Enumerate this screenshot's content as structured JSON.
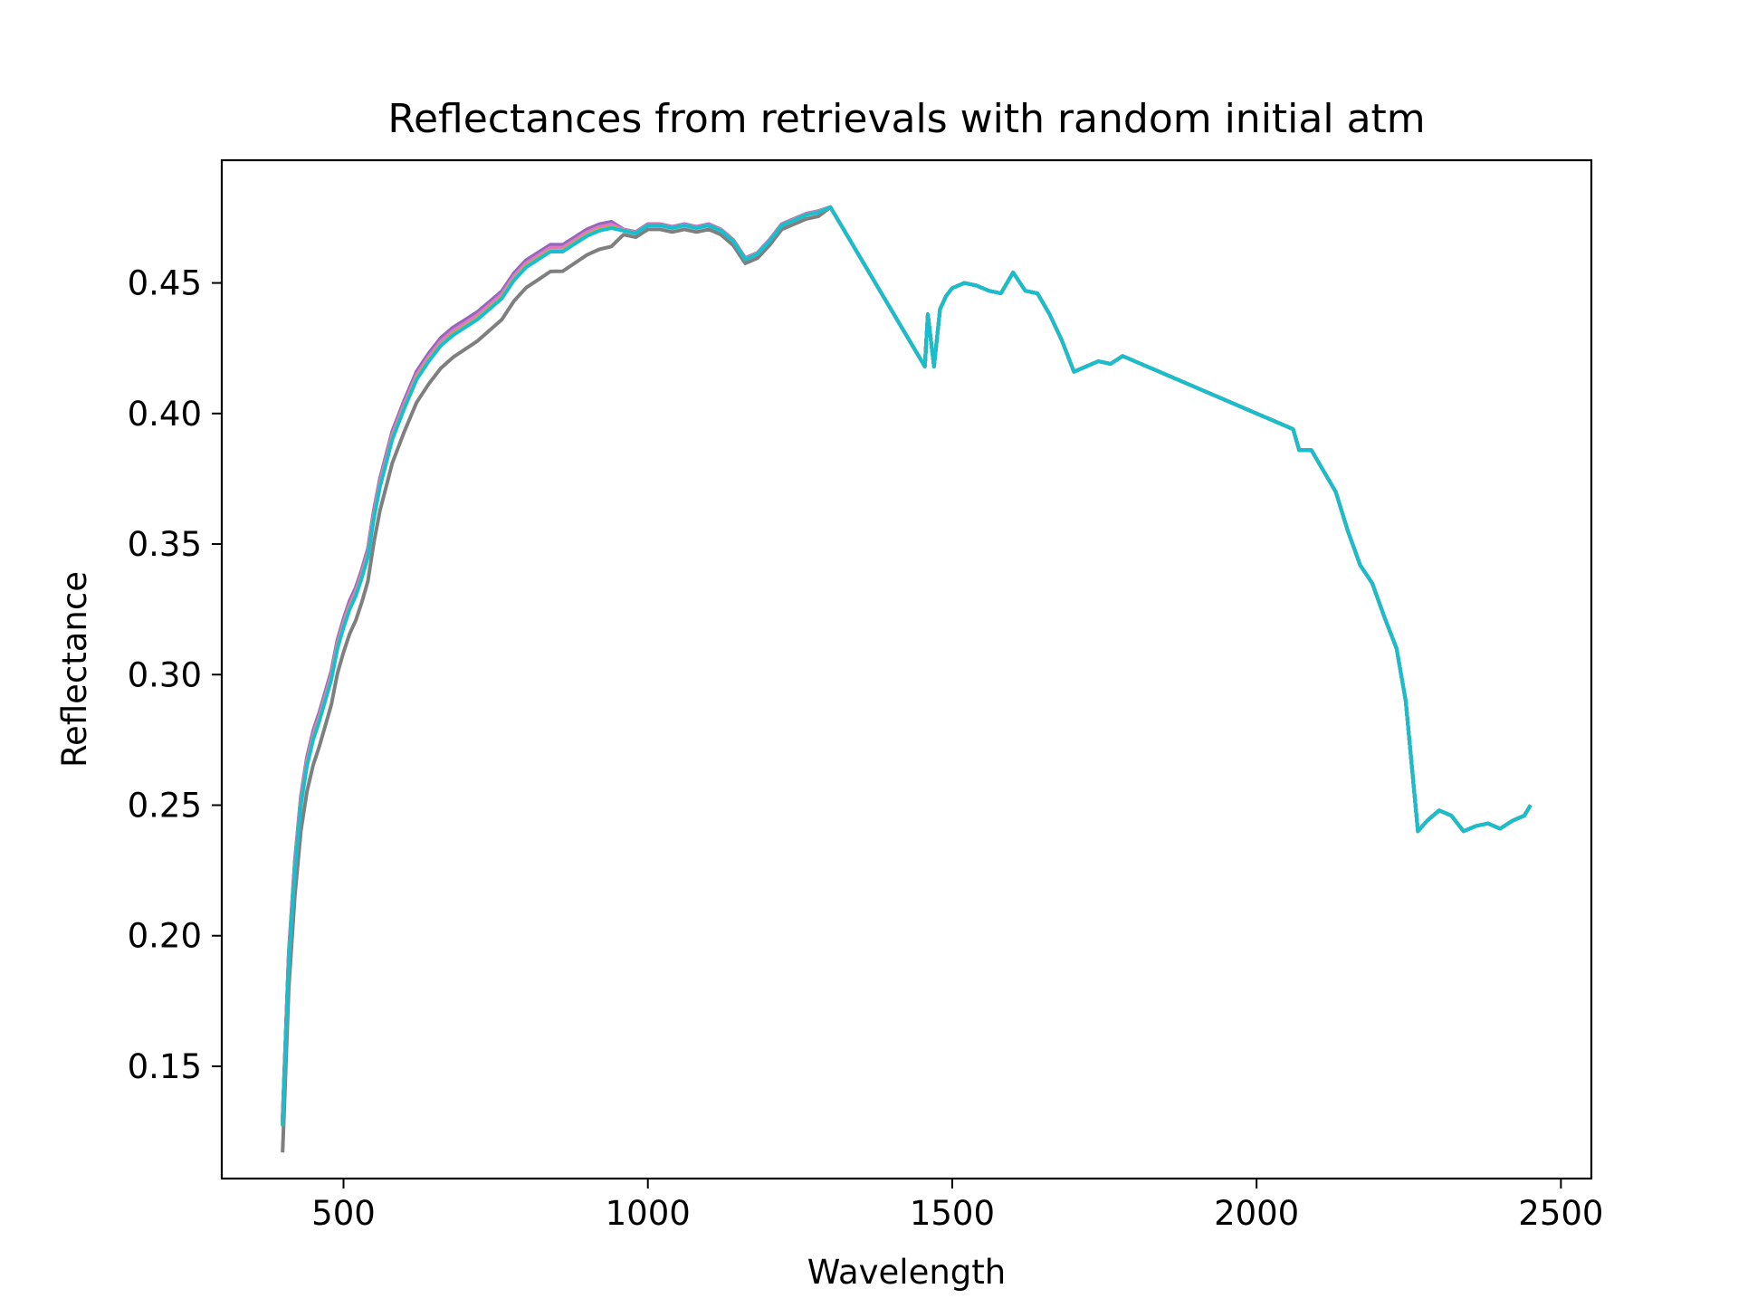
{
  "chart_data": {
    "type": "line",
    "title": "Reflectances from retrievals with random initial atm",
    "xlabel": "Wavelength",
    "ylabel": "Reflectance",
    "xlim": [
      300,
      2550
    ],
    "ylim": [
      0.107,
      0.497
    ],
    "xticks": [
      500,
      1000,
      1500,
      2000,
      2500
    ],
    "yticks": [
      0.15,
      0.2,
      0.25,
      0.3,
      0.35,
      0.4,
      0.45
    ],
    "xtick_labels": [
      "500",
      "1000",
      "1500",
      "2000",
      "2500"
    ],
    "ytick_labels": [
      "0.15",
      "0.20",
      "0.25",
      "0.30",
      "0.35",
      "0.40",
      "0.45"
    ],
    "grid": false,
    "legend": "none",
    "base_curve": {
      "x": [
        400,
        410,
        420,
        430,
        440,
        450,
        460,
        470,
        480,
        490,
        500,
        510,
        520,
        530,
        540,
        550,
        560,
        570,
        580,
        590,
        600,
        620,
        640,
        660,
        680,
        700,
        720,
        740,
        760,
        780,
        800,
        820,
        840,
        860,
        880,
        900,
        920,
        940,
        960,
        980,
        1000,
        1020,
        1040,
        1060,
        1080,
        1100,
        1120,
        1140,
        1160,
        1180,
        1200,
        1220,
        1240,
        1260,
        1280,
        1300,
        1455,
        1460,
        1470,
        1480,
        1490,
        1500,
        1520,
        1540,
        1560,
        1580,
        1600,
        1620,
        1640,
        1660,
        1680,
        1700,
        1720,
        1740,
        1760,
        1780,
        2060,
        2070,
        2090,
        2110,
        2130,
        2150,
        2170,
        2190,
        2210,
        2230,
        2245,
        2265,
        2280,
        2300,
        2320,
        2340,
        2360,
        2380,
        2400,
        2420,
        2440,
        2450
      ],
      "y": [
        0.127,
        0.19,
        0.225,
        0.25,
        0.265,
        0.275,
        0.282,
        0.29,
        0.298,
        0.31,
        0.318,
        0.325,
        0.33,
        0.337,
        0.345,
        0.36,
        0.372,
        0.381,
        0.39,
        0.396,
        0.402,
        0.413,
        0.42,
        0.426,
        0.43,
        0.433,
        0.436,
        0.44,
        0.444,
        0.451,
        0.456,
        0.459,
        0.462,
        0.462,
        0.465,
        0.468,
        0.47,
        0.471,
        0.47,
        0.469,
        0.472,
        0.472,
        0.471,
        0.472,
        0.471,
        0.472,
        0.47,
        0.466,
        0.459,
        0.461,
        0.466,
        0.472,
        0.474,
        0.476,
        0.477,
        0.479,
        0.418,
        0.438,
        0.418,
        0.44,
        0.445,
        0.448,
        0.45,
        0.449,
        0.447,
        0.446,
        0.454,
        0.447,
        0.446,
        0.438,
        0.428,
        0.416,
        0.418,
        0.42,
        0.419,
        0.422,
        0.394,
        0.386,
        0.386,
        0.378,
        0.37,
        0.355,
        0.342,
        0.335,
        0.322,
        0.31,
        0.29,
        0.24,
        0.244,
        0.248,
        0.246,
        0.24,
        0.242,
        0.243,
        0.241,
        0.244,
        0.246,
        0.25
      ]
    },
    "series_colors": [
      "#1f77b4",
      "#ff7f0e",
      "#2ca02c",
      "#d62728",
      "#9467bd",
      "#8c564b",
      "#e377c2",
      "#7f7f7f",
      "#bcbd22",
      "#17becf"
    ]
  }
}
